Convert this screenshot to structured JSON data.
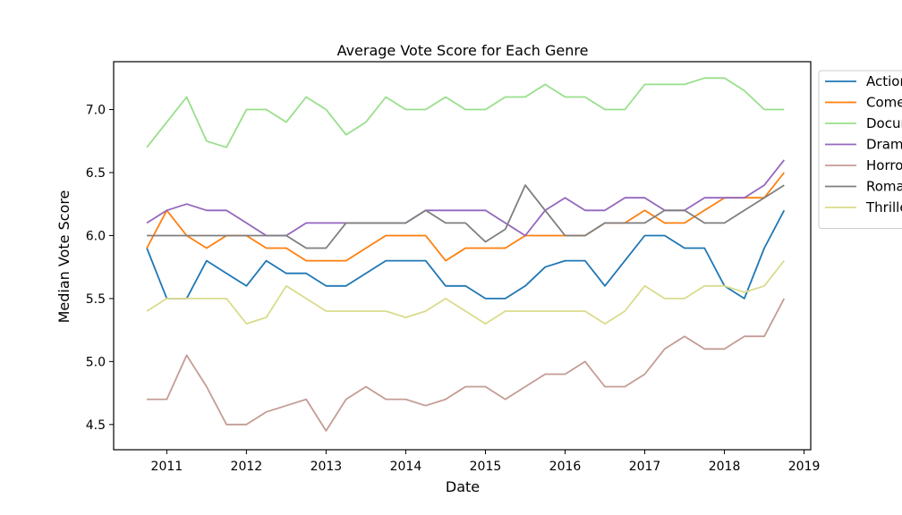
{
  "chart_data": {
    "type": "line",
    "title": "Average Vote Score for Each Genre",
    "xlabel": "Date",
    "ylabel": "Median Vote Score",
    "x": [
      "2010-10",
      "2011-01",
      "2011-04",
      "2011-07",
      "2011-10",
      "2012-01",
      "2012-04",
      "2012-07",
      "2012-10",
      "2013-01",
      "2013-04",
      "2013-07",
      "2013-10",
      "2014-01",
      "2014-04",
      "2014-07",
      "2014-10",
      "2015-01",
      "2015-04",
      "2015-07",
      "2015-10",
      "2016-01",
      "2016-04",
      "2016-07",
      "2016-10",
      "2017-01",
      "2017-04",
      "2017-07",
      "2017-10",
      "2018-01",
      "2018-04",
      "2018-07",
      "2018-10"
    ],
    "xlim": [
      "2010-05",
      "2019-02"
    ],
    "xticks": [
      "2011",
      "2012",
      "2013",
      "2014",
      "2015",
      "2016",
      "2017",
      "2018",
      "2019"
    ],
    "ylim": [
      4.3,
      7.38
    ],
    "yticks": [
      "4.5",
      "5.0",
      "5.5",
      "6.0",
      "6.5",
      "7.0"
    ],
    "grid": false,
    "legend_position": "outside right, top",
    "series": [
      {
        "name": "Action",
        "color": "#1f77b4",
        "values": [
          5.9,
          5.5,
          5.5,
          5.8,
          5.7,
          5.6,
          5.8,
          5.7,
          5.7,
          5.6,
          5.6,
          5.7,
          5.8,
          5.8,
          5.8,
          5.6,
          5.6,
          5.5,
          5.5,
          5.6,
          5.75,
          5.8,
          5.8,
          5.6,
          5.8,
          6.0,
          6.0,
          5.9,
          5.9,
          5.6,
          5.5,
          5.9,
          6.2
        ]
      },
      {
        "name": "Comedy",
        "color": "#ff7f0e",
        "values": [
          5.9,
          6.2,
          6.0,
          5.9,
          6.0,
          6.0,
          5.9,
          5.9,
          5.8,
          5.8,
          5.8,
          5.9,
          6.0,
          6.0,
          6.0,
          5.8,
          5.9,
          5.9,
          5.9,
          6.0,
          6.0,
          6.0,
          6.0,
          6.1,
          6.1,
          6.2,
          6.1,
          6.1,
          6.2,
          6.3,
          6.3,
          6.3,
          6.5
        ]
      },
      {
        "name": "Documentary",
        "color": "#98df8a",
        "values": [
          6.7,
          6.9,
          7.1,
          6.75,
          6.7,
          7.0,
          7.0,
          6.9,
          7.1,
          7.0,
          6.8,
          6.9,
          7.1,
          7.0,
          7.0,
          7.1,
          7.0,
          7.0,
          7.1,
          7.1,
          7.2,
          7.1,
          7.1,
          7.0,
          7.0,
          7.2,
          7.2,
          7.2,
          7.25,
          7.25,
          7.15,
          7.0,
          7.0
        ]
      },
      {
        "name": "Drama",
        "color": "#9467bd",
        "values": [
          6.1,
          6.2,
          6.25,
          6.2,
          6.2,
          6.1,
          6.0,
          6.0,
          6.1,
          6.1,
          6.1,
          6.1,
          6.1,
          6.1,
          6.2,
          6.2,
          6.2,
          6.2,
          6.1,
          6.0,
          6.2,
          6.3,
          6.2,
          6.2,
          6.3,
          6.3,
          6.2,
          6.2,
          6.3,
          6.3,
          6.3,
          6.4,
          6.6
        ]
      },
      {
        "name": "Horror",
        "color": "#c49c94",
        "values": [
          4.7,
          4.7,
          5.05,
          4.8,
          4.5,
          4.5,
          4.6,
          4.65,
          4.7,
          4.45,
          4.7,
          4.8,
          4.7,
          4.7,
          4.65,
          4.7,
          4.8,
          4.8,
          4.7,
          4.8,
          4.9,
          4.9,
          5.0,
          4.8,
          4.8,
          4.9,
          5.1,
          5.2,
          5.1,
          5.1,
          5.2,
          5.2,
          5.5
        ]
      },
      {
        "name": "Romance",
        "color": "#7f7f7f",
        "values": [
          6.0,
          6.0,
          6.0,
          6.0,
          6.0,
          6.0,
          6.0,
          6.0,
          5.9,
          5.9,
          6.1,
          6.1,
          6.1,
          6.1,
          6.2,
          6.1,
          6.1,
          5.95,
          6.05,
          6.4,
          6.2,
          6.0,
          6.0,
          6.1,
          6.1,
          6.1,
          6.2,
          6.2,
          6.1,
          6.1,
          6.2,
          6.3,
          6.4
        ]
      },
      {
        "name": "Thriller",
        "color": "#dbdb8d",
        "values": [
          5.4,
          5.5,
          5.5,
          5.5,
          5.5,
          5.3,
          5.35,
          5.6,
          5.5,
          5.4,
          5.4,
          5.4,
          5.4,
          5.35,
          5.4,
          5.5,
          5.4,
          5.3,
          5.4,
          5.4,
          5.4,
          5.4,
          5.4,
          5.3,
          5.4,
          5.6,
          5.5,
          5.5,
          5.6,
          5.6,
          5.55,
          5.6,
          5.8
        ]
      }
    ]
  }
}
